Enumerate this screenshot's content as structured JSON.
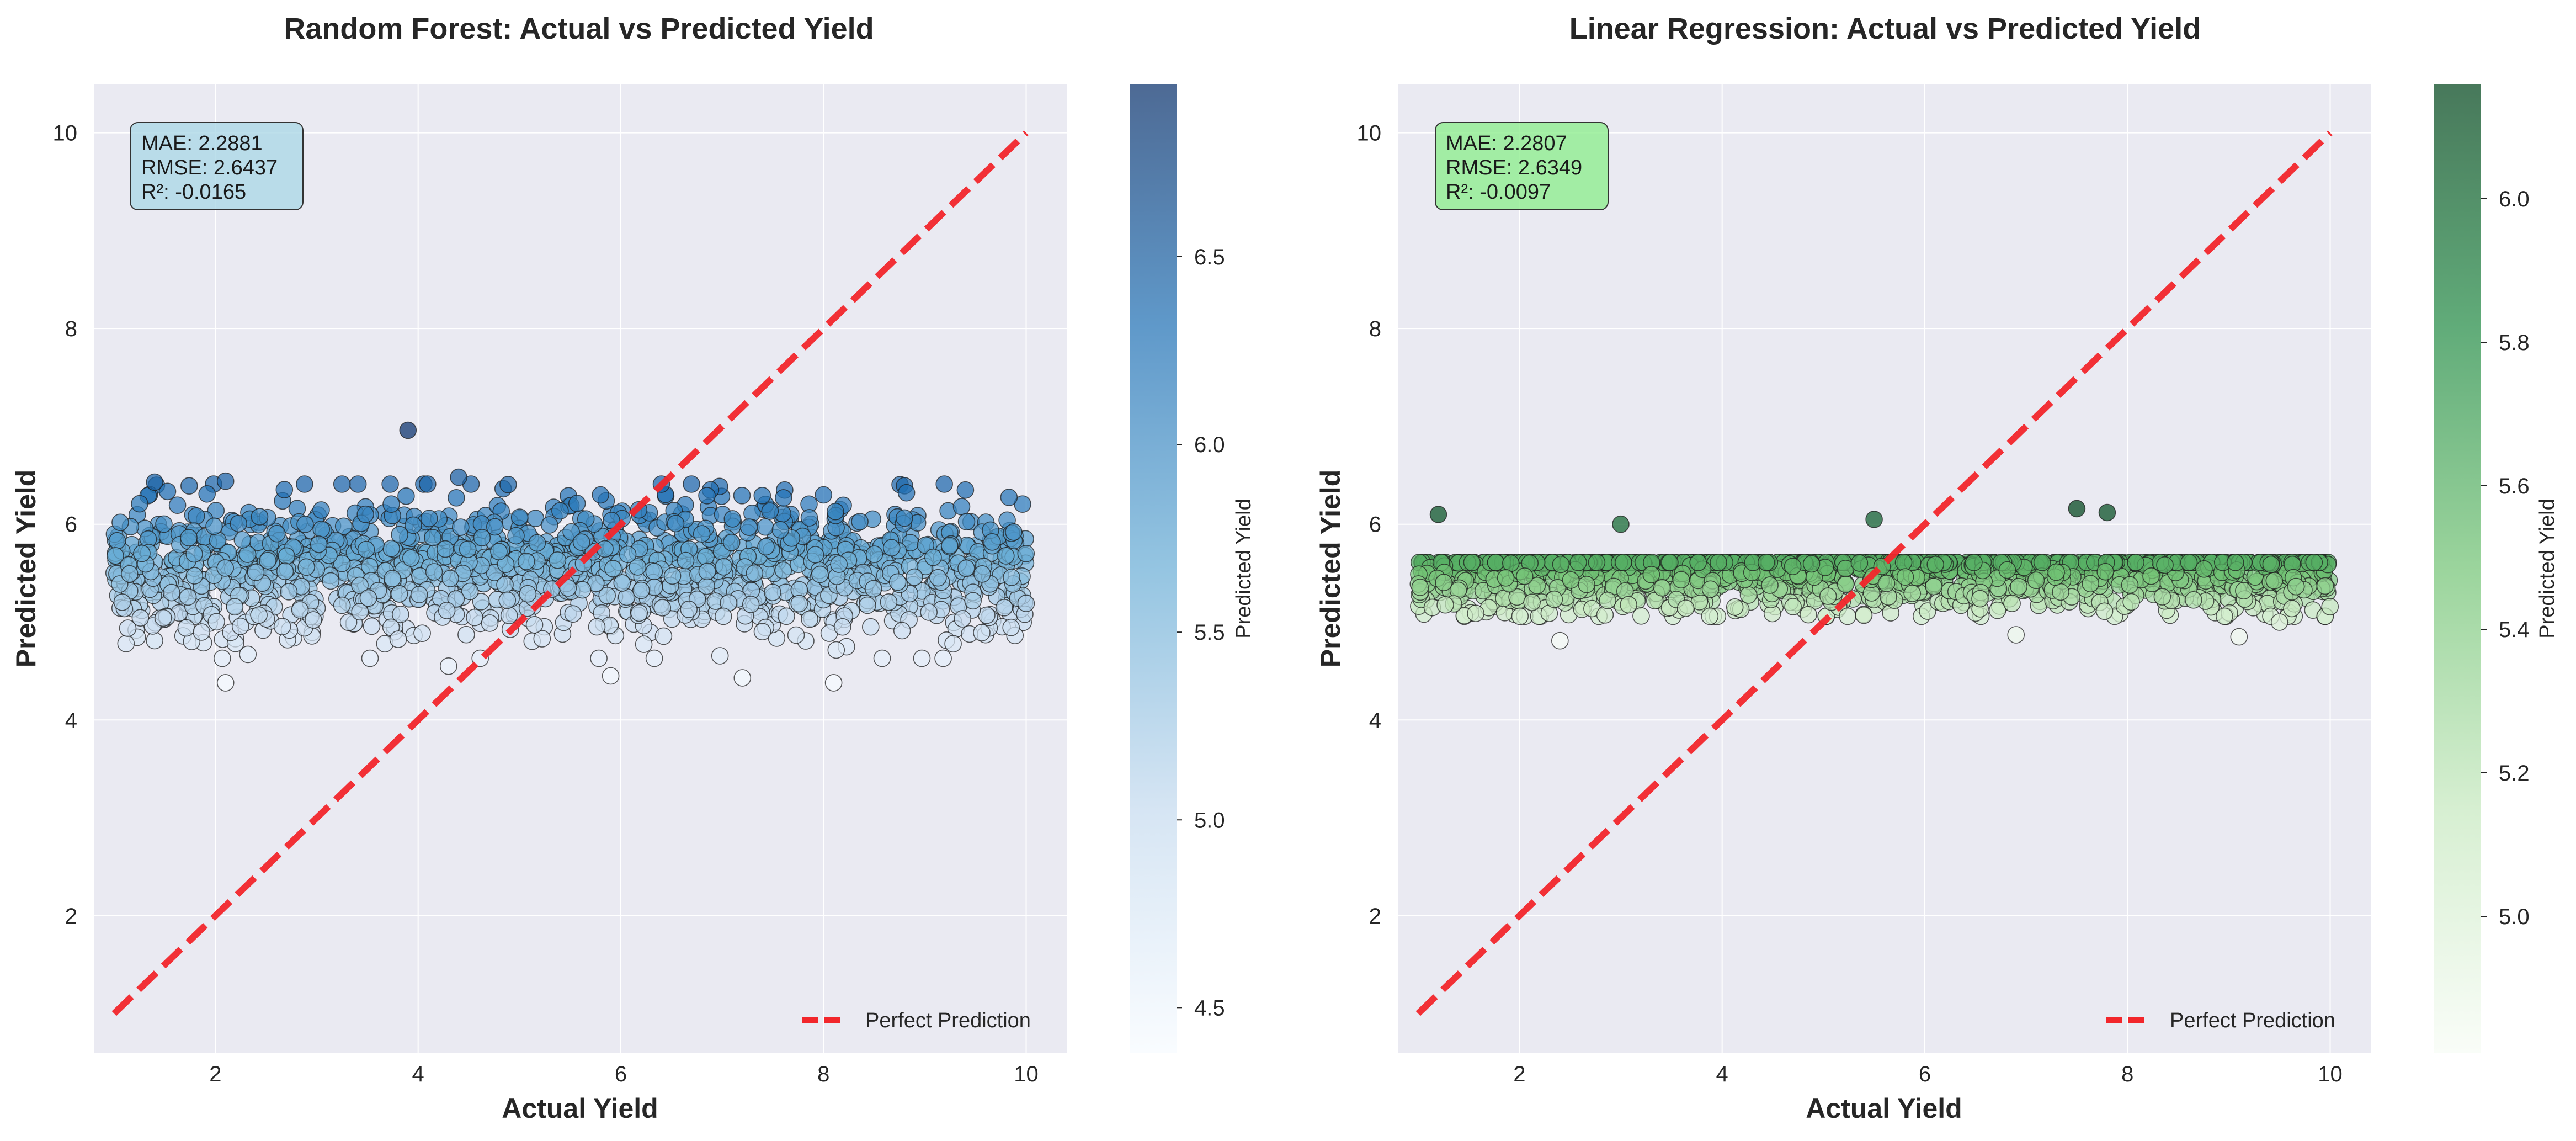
{
  "colors": {
    "plot_bg": "#eaeaf2",
    "grid": "#ffffff",
    "diagonal": "#f2262b",
    "rf_cmap": [
      "#f7fbff",
      "#c6dbef",
      "#6baed6",
      "#2171b5",
      "#08306b"
    ],
    "lr_cmap": [
      "#f7fcf5",
      "#c7e9c0",
      "#74c476",
      "#238b45",
      "#00441b"
    ],
    "rf_metrics_box": "#add8e6",
    "lr_metrics_box": "#90ee90"
  },
  "chart_data": [
    {
      "type": "scatter",
      "title": "Random Forest: Actual vs Predicted Yield",
      "xlabel": "Actual Yield",
      "ylabel": "Predicted Yield",
      "xlim": [
        0.8,
        10.4
      ],
      "ylim": [
        0.6,
        10.5
      ],
      "xticks": [
        2,
        4,
        6,
        8,
        10
      ],
      "yticks": [
        2,
        4,
        6,
        8,
        10
      ],
      "grid": true,
      "colormap": "Blues",
      "colorbar": {
        "label": "Predicted Yield",
        "range": [
          4.38,
          6.96
        ],
        "ticks": [
          4.5,
          5.0,
          5.5,
          6.0,
          6.5
        ]
      },
      "metrics": [
        "MAE: 2.2881",
        "RMSE: 2.6437",
        "R²: -0.0165"
      ],
      "reference_line": {
        "name": "Perfect Prediction",
        "x": [
          1,
          10
        ],
        "y": [
          1,
          10
        ],
        "style": "dashed"
      },
      "legend_position": "lower-right",
      "points": {
        "x_range": [
          1,
          10
        ],
        "y_mean": 5.55,
        "y_spread": 0.35,
        "y_min": 4.38,
        "y_max": 6.96,
        "highlights": [
          {
            "x": 3.9,
            "y": 6.96
          },
          {
            "x": 4.4,
            "y": 6.48
          },
          {
            "x": 1.4,
            "y": 6.43
          },
          {
            "x": 2.1,
            "y": 6.44
          },
          {
            "x": 2.1,
            "y": 4.38
          },
          {
            "x": 8.1,
            "y": 4.38
          },
          {
            "x": 5.9,
            "y": 4.45
          },
          {
            "x": 7.2,
            "y": 4.43
          },
          {
            "x": 4.3,
            "y": 4.55
          },
          {
            "x": 5.8,
            "y": 6.3
          },
          {
            "x": 9.4,
            "y": 6.35
          },
          {
            "x": 8.0,
            "y": 6.3
          }
        ]
      }
    },
    {
      "type": "scatter",
      "title": "Linear Regression: Actual vs Predicted Yield",
      "xlabel": "Actual Yield",
      "ylabel": "Predicted Yield",
      "xlim": [
        0.8,
        10.4
      ],
      "ylim": [
        0.6,
        10.5
      ],
      "xticks": [
        2,
        4,
        6,
        8,
        10
      ],
      "yticks": [
        2,
        4,
        6,
        8,
        10
      ],
      "grid": true,
      "colormap": "Greens",
      "colorbar": {
        "label": "Predicted Yield",
        "range": [
          4.81,
          6.16
        ],
        "ticks": [
          5.0,
          5.2,
          5.4,
          5.6,
          5.8,
          6.0
        ]
      },
      "metrics": [
        "MAE: 2.2807",
        "RMSE: 2.6349",
        "R²: -0.0097"
      ],
      "reference_line": {
        "name": "Perfect Prediction",
        "x": [
          1,
          10
        ],
        "y": [
          1,
          10
        ],
        "style": "dashed"
      },
      "legend_position": "lower-right",
      "points": {
        "x_range": [
          1,
          10
        ],
        "y_mean": 5.5,
        "y_spread": 0.22,
        "y_min": 4.81,
        "y_max": 6.16,
        "highlights": [
          {
            "x": 7.5,
            "y": 6.16
          },
          {
            "x": 7.8,
            "y": 6.12
          },
          {
            "x": 1.2,
            "y": 6.1
          },
          {
            "x": 2.4,
            "y": 4.81
          },
          {
            "x": 6.9,
            "y": 4.87
          },
          {
            "x": 9.1,
            "y": 4.85
          },
          {
            "x": 5.5,
            "y": 6.05
          },
          {
            "x": 3.0,
            "y": 6.0
          },
          {
            "x": 9.5,
            "y": 5.0
          }
        ]
      }
    }
  ]
}
